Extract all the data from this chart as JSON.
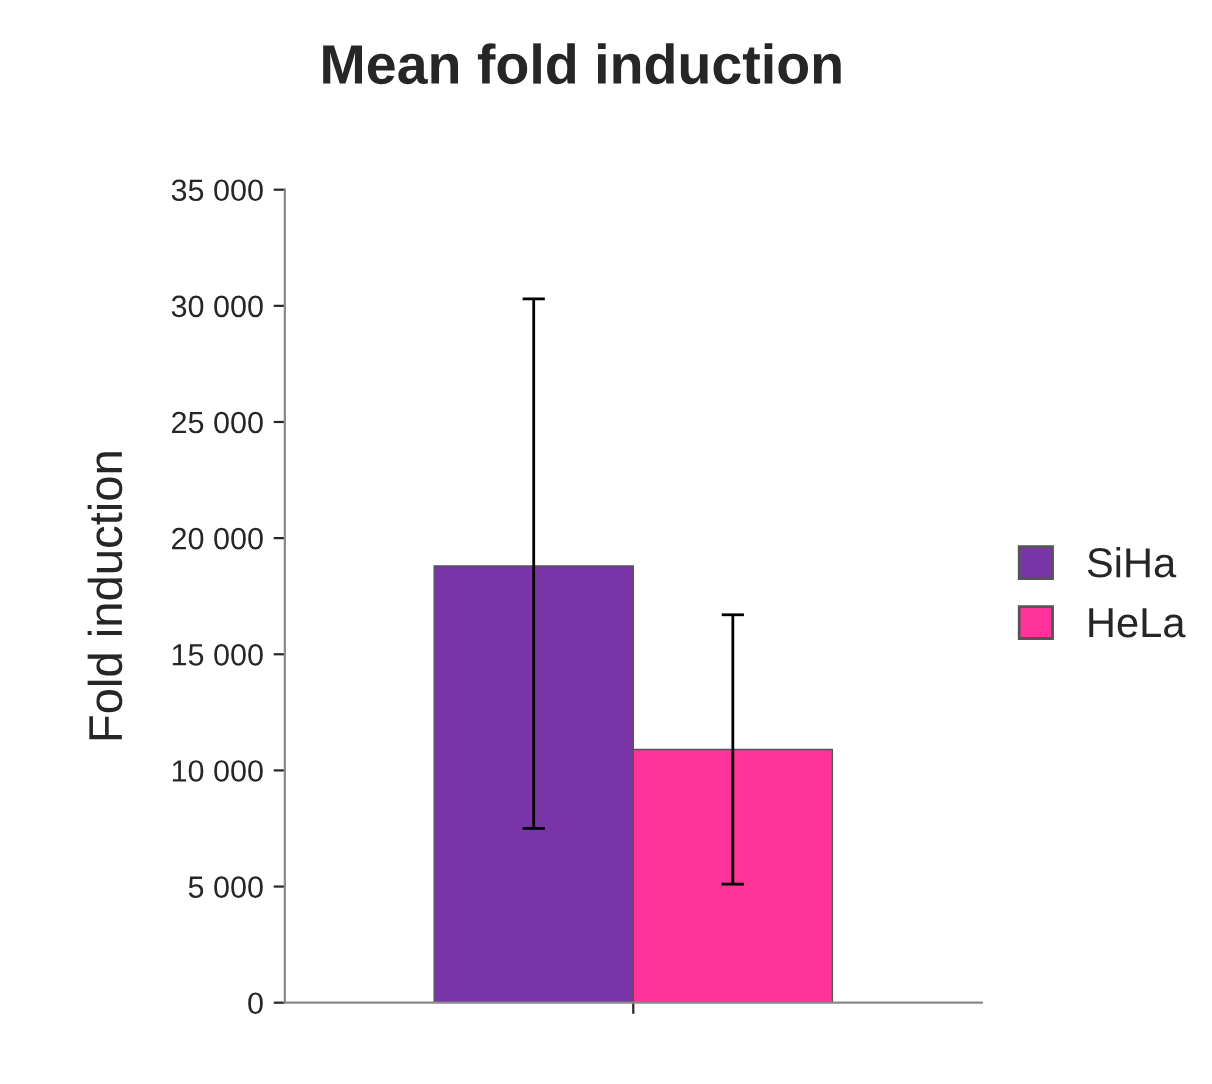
{
  "chart_data": {
    "type": "bar",
    "title": "Mean fold induction",
    "ylabel": "Fold induction",
    "categories": [
      null
    ],
    "series": [
      {
        "name": "SiHa",
        "color": "#7935a8",
        "values": [
          18800
        ],
        "errors": [
          [
            7500,
            30300
          ]
        ]
      },
      {
        "name": "HeLa",
        "color": "#ff3399",
        "values": [
          10900
        ],
        "errors": [
          [
            5100,
            16700
          ]
        ]
      }
    ],
    "ylim": [
      0,
      35000
    ],
    "yticks": [
      0,
      {
        "value": 5000,
        "label": "5 000"
      },
      {
        "value": 10000,
        "label": "10 000"
      },
      {
        "value": 15000,
        "label": "15 000"
      },
      {
        "value": 20000,
        "label": "20 000"
      },
      {
        "value": 25000,
        "label": "25 000"
      },
      {
        "value": 30000,
        "label": "30 000"
      },
      {
        "value": 35000,
        "label": "35 000"
      }
    ],
    "legend": "right",
    "grid": false
  }
}
